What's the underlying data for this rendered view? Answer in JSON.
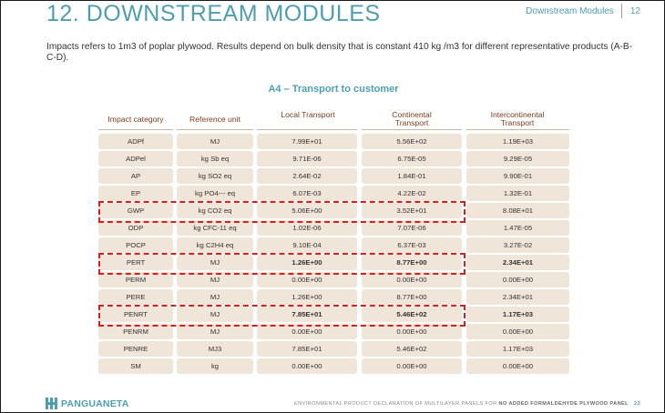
{
  "page": {
    "title": "12. DOWNSTREAM MODULES",
    "section_label": "Downstream Modules",
    "page_number": "12"
  },
  "intro": {
    "text": "Impacts refers to 1m3 of poplar plywood. Results depend on bulk density that is constant 410 kg /m3 for different representative products (A-B-C-D)."
  },
  "table": {
    "title": "A4 – Transport to customer",
    "headers": {
      "impact_category": "Impact category",
      "reference_unit": "Reference unit",
      "local": "Local Transport",
      "continental": "Continental Transport",
      "intercontinental": "Intercontinental Transport"
    },
    "rows": [
      {
        "category": "ADPf",
        "unit": "MJ",
        "local": "7.99E+01",
        "continental": "5.56E+02",
        "intercontinental": "1.19E+03"
      },
      {
        "category": "ADPel",
        "unit": "kg Sb eq",
        "local": "9.71E-06",
        "continental": "6.75E-05",
        "intercontinental": "9.29E-05"
      },
      {
        "category": "AP",
        "unit": "kg SO2 eq",
        "local": "2.64E-02",
        "continental": "1.84E-01",
        "intercontinental": "9.90E-01"
      },
      {
        "category": "EP",
        "unit": "kg PO4--- eq",
        "local": "6.07E-03",
        "continental": "4.22E-02",
        "intercontinental": "1.32E-01"
      },
      {
        "category": "GWP",
        "unit": "kg CO2 eq",
        "local": "5.06E+00",
        "continental": "3.52E+01",
        "intercontinental": "8.08E+01"
      },
      {
        "category": "ODP",
        "unit": "kg CFC-11 eq",
        "local": "1.02E-06",
        "continental": "7.07E-06",
        "intercontinental": "1.47E-05"
      },
      {
        "category": "POCP",
        "unit": "kg C2H4 eq",
        "local": "9.10E-04",
        "continental": "6.37E-03",
        "intercontinental": "3.27E-02"
      },
      {
        "category": "PERT",
        "unit": "MJ",
        "local": "1.26E+00",
        "continental": "8.77E+00",
        "intercontinental": "2.34E+01",
        "bold": true
      },
      {
        "category": "PERM",
        "unit": "MJ",
        "local": "0.00E+00",
        "continental": "0.00E+00",
        "intercontinental": "0.00E+00"
      },
      {
        "category": "PERE",
        "unit": "MJ",
        "local": "1.26E+00",
        "continental": "8.77E+00",
        "intercontinental": "2.34E+01"
      },
      {
        "category": "PENRT",
        "unit": "MJ",
        "local": "7.85E+01",
        "continental": "5.46E+02",
        "intercontinental": "1.17E+03",
        "bold": true
      },
      {
        "category": "PENRM",
        "unit": "MJ",
        "local": "0.00E+00",
        "continental": "0.00E+00",
        "intercontinental": "0.00E+00"
      },
      {
        "category": "PENRE",
        "unit": "MJ3",
        "local": "7.85E+01",
        "continental": "5.46E+02",
        "intercontinental": "1.17E+03"
      },
      {
        "category": "SM",
        "unit": "kg",
        "local": "0.00E+00",
        "continental": "0.00E+00",
        "intercontinental": "0.00E+00"
      }
    ],
    "highlighted_rows": [
      "GWP",
      "PERT",
      "PENRT"
    ]
  },
  "footer": {
    "brand": "PANGUANETA",
    "logo_icon": "panguaneta-logo-icon",
    "doc_text_prefix": "ENVIRONMENTAL PRODUCT DECLARATION OF MULTILAYER PANELS FOR ",
    "doc_text_emphasis": "NO ADDED FORMALDEHYDE PLYWOOD PANEL",
    "page_number": "22"
  },
  "colors": {
    "accent": "#4d9fb0",
    "header_text": "#7a3b1c",
    "cell_fill": "#efe5d8",
    "highlight_border": "#d81f1f"
  }
}
